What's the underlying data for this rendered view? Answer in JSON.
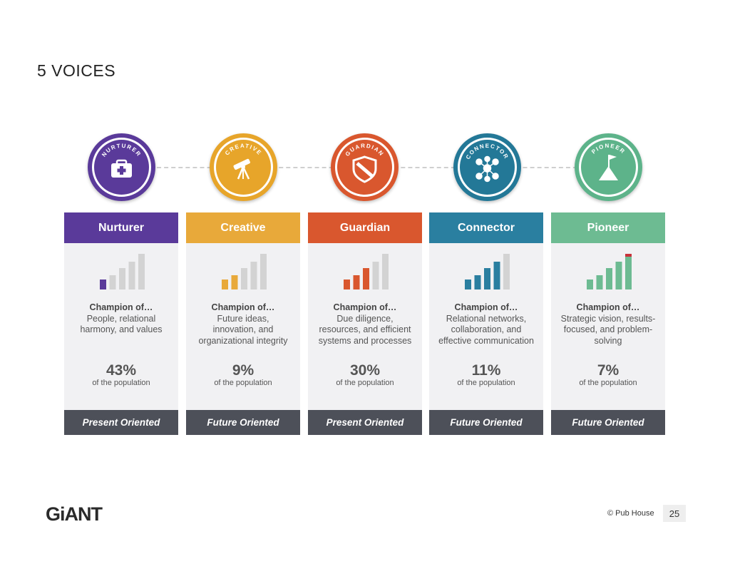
{
  "title": "5 VOICES",
  "champion_lead": "Champion of…",
  "voices": [
    {
      "name": "Nurturer",
      "badge_label": "NURTURER",
      "icon": "first-aid-kit-icon",
      "color": "#5a3a9a",
      "badge_bg": "#5a3a9a",
      "desc": "People, relational harmony, and values",
      "percent": "43%",
      "population_label": "of the population",
      "orientation": "Present Oriented",
      "filled_bars": 1
    },
    {
      "name": "Creative",
      "badge_label": "CREATIVE",
      "icon": "telescope-icon",
      "color": "#e8a93a",
      "badge_bg": "#e7a52a",
      "desc": "Future ideas, innovation, and organizational integrity",
      "percent": "9%",
      "population_label": "of the population",
      "orientation": "Future Oriented",
      "filled_bars": 2
    },
    {
      "name": "Guardian",
      "badge_label": "GUARDIAN",
      "icon": "shield-icon",
      "color": "#d9572e",
      "badge_bg": "#d9572e",
      "desc": "Due diligence, resources, and efficient systems and processes",
      "percent": "30%",
      "population_label": "of the population",
      "orientation": "Present Oriented",
      "filled_bars": 3
    },
    {
      "name": "Connector",
      "badge_label": "CONNECTOR",
      "icon": "network-icon",
      "color": "#2a7fa0",
      "badge_bg": "#237897",
      "desc": "Relational networks, collaboration, and effective communication",
      "percent": "11%",
      "population_label": "of the population",
      "orientation": "Future Oriented",
      "filled_bars": 4
    },
    {
      "name": "Pioneer",
      "badge_label": "PIONEER",
      "icon": "mountain-flag-icon",
      "color": "#6dbb92",
      "badge_bg": "#5db38a",
      "desc": "Strategic vision, results-focused, and problem-solving",
      "percent": "7%",
      "population_label": "of the population",
      "orientation": "Future Oriented",
      "filled_bars": 5
    }
  ],
  "logo": "GiANT",
  "copyright": "© Pub House",
  "page_number": "25"
}
